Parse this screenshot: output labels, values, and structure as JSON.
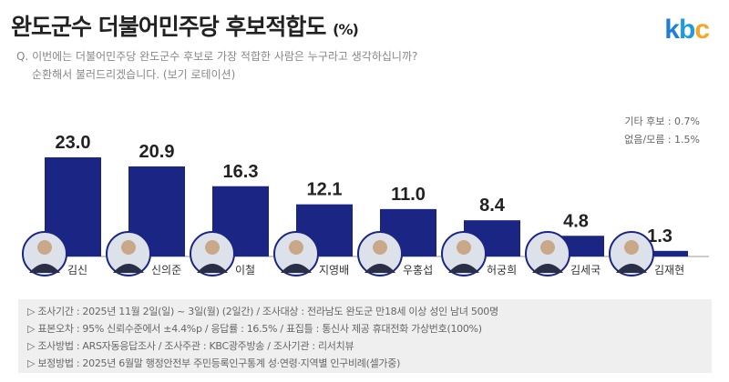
{
  "header": {
    "title": "완도군수 더불어민주당 후보적합도",
    "unit": "(%)",
    "logo": "kbc",
    "question_line1": "Q. 이번에는 더불어민주당 완도군수 후보로 가장 적합한 사람은 누구라고 생각하십니까?",
    "question_line2": "순환해서 불러드리겠습니다. (보기 로테이션)"
  },
  "other_notes": [
    "기타 후보 : 0.7%",
    "없음/모름 : 1.5%"
  ],
  "chart_data": {
    "type": "bar",
    "categories": [
      "김신",
      "신의준",
      "이철",
      "지영배",
      "우홍섭",
      "허궁희",
      "김세국",
      "김재현"
    ],
    "values": [
      23.0,
      20.9,
      16.3,
      12.1,
      11.0,
      8.4,
      4.8,
      1.3
    ],
    "bar_color": "#1b2583",
    "ylim": [
      0,
      25
    ]
  },
  "notes": [
    "▷ 조사기간 : 2025년 11월 2일(일) ~ 3일(월) (2일간) / 조사대상 : 전라남도 완도군 만18세 이상 성인 남녀 500명",
    "▷ 표본오차 : 95% 신뢰수준에서 ±4.4%p / 응답률 : 16.5% / 표집틀 : 통신사 제공 휴대전화 가상번호(100%)",
    "▷ 조사방법 : ARS자동응답조사 / 조사주관 : KBC광주방송 / 조사기관 : 리서치뷰",
    "▷ 보정방법 : 2025년 6월말 행정안전부 주민등록인구통계 성·연령·지역별 인구비례(셀가중)"
  ]
}
